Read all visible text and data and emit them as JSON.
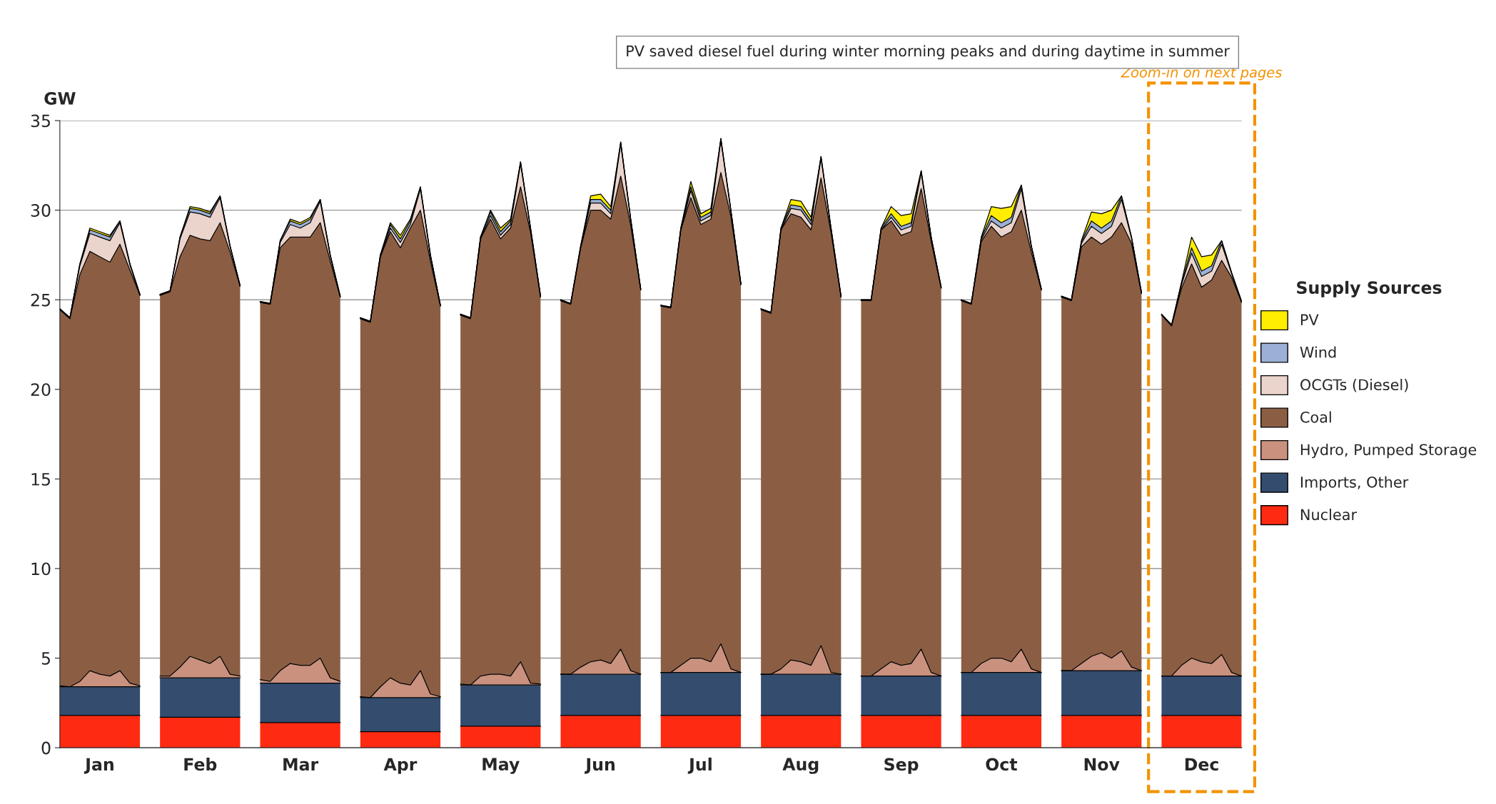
{
  "chart_data": {
    "type": "area",
    "stacked": true,
    "ylabel": "GW",
    "legend_title": "Supply Sources",
    "legend": "right",
    "grid": "y",
    "categories": [
      null,
      null,
      null,
      null,
      "Jan",
      null,
      null,
      null,
      null,
      null,
      null,
      null,
      null,
      null,
      "Feb",
      null,
      null,
      null,
      null,
      null,
      null,
      null,
      null,
      null,
      "Mar",
      null,
      null,
      null,
      null,
      null,
      null,
      null,
      null,
      null,
      "Apr",
      null,
      null,
      null,
      null,
      null,
      null,
      null,
      null,
      null,
      "May",
      null,
      null,
      null,
      null,
      null,
      null,
      null,
      null,
      null,
      "Jun",
      null,
      null,
      null,
      null,
      null,
      null,
      null,
      null,
      null,
      "Jul",
      null,
      null,
      null,
      null,
      null,
      null,
      null,
      null,
      null,
      "Aug",
      null,
      null,
      null,
      null,
      null,
      null,
      null,
      null,
      null,
      "Sep",
      null,
      null,
      null,
      null,
      null,
      null,
      null,
      null,
      null,
      "Oct",
      null,
      null,
      null,
      null,
      null,
      null,
      null,
      null,
      null,
      "Nov",
      null,
      null,
      null,
      null,
      null,
      null,
      null,
      null,
      null,
      "Dec",
      null,
      null,
      null,
      null
    ],
    "ylim": [
      0,
      35
    ],
    "yticks": [
      0,
      5,
      10,
      15,
      20,
      25,
      30,
      35
    ],
    "series": [
      {
        "name": "Nuclear",
        "color": "#ff2a12",
        "values": [
          1.8,
          1.8,
          1.8,
          1.8,
          1.8,
          1.8,
          1.8,
          1.8,
          1.8,
          null,
          1.7,
          1.7,
          1.7,
          1.7,
          1.7,
          1.7,
          1.7,
          1.7,
          1.7,
          null,
          1.4,
          1.4,
          1.4,
          1.4,
          1.4,
          1.4,
          1.4,
          1.4,
          1.4,
          null,
          0.9,
          0.9,
          0.9,
          0.9,
          0.9,
          0.9,
          0.9,
          0.9,
          0.9,
          null,
          1.2,
          1.2,
          1.2,
          1.2,
          1.2,
          1.2,
          1.2,
          1.2,
          1.2,
          null,
          1.8,
          1.8,
          1.8,
          1.8,
          1.8,
          1.8,
          1.8,
          1.8,
          1.8,
          null,
          1.8,
          1.8,
          1.8,
          1.8,
          1.8,
          1.8,
          1.8,
          1.8,
          1.8,
          null,
          1.8,
          1.8,
          1.8,
          1.8,
          1.8,
          1.8,
          1.8,
          1.8,
          1.8,
          null,
          1.8,
          1.8,
          1.8,
          1.8,
          1.8,
          1.8,
          1.8,
          1.8,
          1.8,
          null,
          1.8,
          1.8,
          1.8,
          1.8,
          1.8,
          1.8,
          1.8,
          1.8,
          1.8,
          null,
          1.8,
          1.8,
          1.8,
          1.8,
          1.8,
          1.8,
          1.8,
          1.8,
          1.8,
          null,
          1.8,
          1.8,
          1.8,
          1.8,
          1.8,
          1.8,
          1.8,
          1.8,
          1.8
        ]
      },
      {
        "name": "Imports, Other",
        "color": "#344c6e",
        "values": [
          1.6,
          1.6,
          1.6,
          1.6,
          1.6,
          1.6,
          1.6,
          1.6,
          1.6,
          null,
          2.2,
          2.2,
          2.2,
          2.2,
          2.2,
          2.2,
          2.2,
          2.2,
          2.2,
          null,
          2.2,
          2.2,
          2.2,
          2.2,
          2.2,
          2.2,
          2.2,
          2.2,
          2.2,
          null,
          1.9,
          1.9,
          1.9,
          1.9,
          1.9,
          1.9,
          1.9,
          1.9,
          1.9,
          null,
          2.3,
          2.3,
          2.3,
          2.3,
          2.3,
          2.3,
          2.3,
          2.3,
          2.3,
          null,
          2.3,
          2.3,
          2.3,
          2.3,
          2.3,
          2.3,
          2.3,
          2.3,
          2.3,
          null,
          2.4,
          2.4,
          2.4,
          2.4,
          2.4,
          2.4,
          2.4,
          2.4,
          2.4,
          null,
          2.3,
          2.3,
          2.3,
          2.3,
          2.3,
          2.3,
          2.3,
          2.3,
          2.3,
          null,
          2.2,
          2.2,
          2.2,
          2.2,
          2.2,
          2.2,
          2.2,
          2.2,
          2.2,
          null,
          2.4,
          2.4,
          2.4,
          2.4,
          2.4,
          2.4,
          2.4,
          2.4,
          2.4,
          null,
          2.5,
          2.5,
          2.5,
          2.5,
          2.5,
          2.5,
          2.5,
          2.5,
          2.5,
          null,
          2.2,
          2.2,
          2.2,
          2.2,
          2.2,
          2.2,
          2.2,
          2.2,
          2.2
        ]
      },
      {
        "name": "Hydro, Pumped Storage",
        "color": "#c9917e",
        "values": [
          0.05,
          0,
          0.3,
          0.9,
          0.7,
          0.6,
          0.9,
          0.2,
          0.05,
          null,
          0.1,
          0.1,
          0.6,
          1.2,
          1.0,
          0.8,
          1.2,
          0.2,
          0.1,
          null,
          0.2,
          0.1,
          0.7,
          1.1,
          1.0,
          1.0,
          1.4,
          0.3,
          0.1,
          null,
          0.05,
          0,
          0.6,
          1.1,
          0.8,
          0.7,
          1.5,
          0.2,
          0.05,
          null,
          0.05,
          0,
          0.5,
          0.6,
          0.6,
          0.5,
          1.3,
          0.1,
          0.05,
          null,
          0,
          0,
          0.4,
          0.7,
          0.8,
          0.6,
          1.4,
          0.2,
          0,
          null,
          0,
          0,
          0.4,
          0.8,
          0.8,
          0.6,
          1.6,
          0.2,
          0,
          null,
          0,
          0,
          0.3,
          0.8,
          0.7,
          0.5,
          1.6,
          0.1,
          0,
          null,
          0,
          0,
          0.4,
          0.8,
          0.6,
          0.7,
          1.5,
          0.2,
          0,
          null,
          0,
          0,
          0.5,
          0.8,
          0.8,
          0.6,
          1.3,
          0.2,
          0,
          null,
          0,
          0,
          0.4,
          0.8,
          1.0,
          0.7,
          1.1,
          0.2,
          0,
          null,
          0,
          0,
          0.6,
          1.0,
          0.8,
          0.7,
          1.2,
          0.2,
          0
        ]
      },
      {
        "name": "Coal",
        "color": "#8b5e44",
        "values": [
          21.0,
          20.55,
          22.7,
          23.4,
          23.3,
          23.1,
          23.8,
          23.05,
          21.8,
          null,
          21.25,
          21.45,
          22.9,
          23.5,
          23.5,
          23.6,
          24.2,
          23.55,
          21.75,
          null,
          21.05,
          21.05,
          23.6,
          23.8,
          23.9,
          23.9,
          24.3,
          23.25,
          21.45,
          null,
          21.1,
          20.95,
          24.0,
          24.9,
          24.3,
          25.5,
          25.7,
          24.15,
          21.8,
          null,
          20.6,
          20.45,
          24.4,
          25.4,
          24.3,
          25.0,
          26.5,
          25.15,
          21.6,
          null,
          20.85,
          20.65,
          23.4,
          25.2,
          25.1,
          24.8,
          26.4,
          24.85,
          21.45,
          null,
          20.45,
          20.35,
          24.3,
          25.7,
          24.2,
          24.7,
          26.3,
          25.25,
          21.65,
          null,
          20.35,
          20.15,
          24.5,
          24.9,
          24.8,
          24.3,
          26.1,
          24.55,
          21.05,
          null,
          20.95,
          20.95,
          24.5,
          24.6,
          24.0,
          24.1,
          25.7,
          24.05,
          21.65,
          null,
          20.75,
          20.55,
          23.55,
          24.1,
          23.5,
          24.0,
          24.5,
          23.25,
          21.35,
          null,
          20.85,
          20.65,
          23.25,
          23.4,
          22.8,
          23.5,
          23.9,
          23.65,
          21.05,
          null,
          20.15,
          19.55,
          21.05,
          22.0,
          20.9,
          21.4,
          22.0,
          22.05,
          20.85
        ]
      },
      {
        "name": "OCGTs (Diesel)",
        "color": "#ead4cc",
        "values": [
          0,
          0,
          0.5,
          1.0,
          1.1,
          1.2,
          1.2,
          0.3,
          0,
          null,
          0,
          0,
          1.0,
          1.3,
          1.4,
          1.3,
          1.4,
          0.3,
          0,
          null,
          0,
          0,
          0.3,
          0.7,
          0.5,
          0.8,
          1.2,
          0.3,
          0,
          null,
          0,
          0,
          0,
          0.2,
          0.3,
          0.2,
          1.2,
          0.3,
          0,
          null,
          0,
          0,
          0,
          0.2,
          0.2,
          0.2,
          1.3,
          0.2,
          0,
          null,
          0,
          0,
          0,
          0.4,
          0.4,
          0.3,
          1.8,
          0.3,
          0,
          null,
          0,
          0,
          0,
          0.4,
          0.2,
          0.2,
          1.8,
          0.3,
          0,
          null,
          0,
          0,
          0,
          0.3,
          0.4,
          0.3,
          1.1,
          0.2,
          0,
          null,
          0,
          0,
          0,
          0.2,
          0.3,
          0.3,
          0.9,
          0.2,
          0,
          null,
          0,
          0,
          0.1,
          0.3,
          0.5,
          0.5,
          1.2,
          0.3,
          0,
          null,
          0,
          0,
          0.2,
          0.6,
          0.6,
          0.6,
          1.3,
          0.3,
          0,
          null,
          0,
          0,
          0.2,
          0.6,
          0.6,
          0.5,
          0.9,
          0.2,
          0
        ]
      },
      {
        "name": "Wind",
        "color": "#9bb0d4",
        "values": [
          0.05,
          0.05,
          0.1,
          0.2,
          0.2,
          0.2,
          0.1,
          0.05,
          0.05,
          null,
          0.05,
          0.05,
          0.1,
          0.2,
          0.2,
          0.2,
          0.1,
          0.05,
          0.05,
          null,
          0.05,
          0.05,
          0.1,
          0.2,
          0.2,
          0.2,
          0.1,
          0.05,
          0.05,
          null,
          0.05,
          0.05,
          0.1,
          0.2,
          0.2,
          0.2,
          0.1,
          0.05,
          0.05,
          null,
          0.05,
          0.05,
          0.1,
          0.2,
          0.2,
          0.2,
          0.1,
          0.05,
          0.05,
          null,
          0.05,
          0.05,
          0.1,
          0.2,
          0.2,
          0.2,
          0.1,
          0.05,
          0.05,
          null,
          0.05,
          0.05,
          0.1,
          0.2,
          0.2,
          0.2,
          0.1,
          0.05,
          0.05,
          null,
          0.05,
          0.05,
          0.1,
          0.2,
          0.2,
          0.2,
          0.1,
          0.05,
          0.05,
          null,
          0.05,
          0.05,
          0.1,
          0.2,
          0.2,
          0.2,
          0.1,
          0.05,
          0.05,
          null,
          0.05,
          0.05,
          0.1,
          0.3,
          0.3,
          0.3,
          0.2,
          0.05,
          0.05,
          null,
          0.05,
          0.05,
          0.1,
          0.3,
          0.3,
          0.3,
          0.2,
          0.05,
          0.05,
          null,
          0.05,
          0.05,
          0.1,
          0.3,
          0.3,
          0.3,
          0.2,
          0.05,
          0.05
        ]
      },
      {
        "name": "PV",
        "color": "#ffee00",
        "values": [
          0,
          0,
          0,
          0.1,
          0.1,
          0.1,
          0,
          0,
          0,
          null,
          0,
          0,
          0,
          0.1,
          0.1,
          0.1,
          0,
          0,
          0,
          null,
          0,
          0,
          0,
          0.1,
          0.1,
          0.1,
          0,
          0,
          0,
          null,
          0,
          0,
          0,
          0.1,
          0.2,
          0.1,
          0,
          0,
          0,
          null,
          0,
          0,
          0,
          0.1,
          0.2,
          0.1,
          0,
          0,
          0,
          null,
          0,
          0,
          0,
          0.2,
          0.3,
          0.2,
          0,
          0,
          0,
          null,
          0,
          0,
          0,
          0.3,
          0.2,
          0.2,
          0,
          0,
          0,
          null,
          0,
          0,
          0,
          0.3,
          0.3,
          0.2,
          0,
          0,
          0,
          null,
          0,
          0,
          0,
          0.4,
          0.6,
          0.5,
          0,
          0,
          0,
          null,
          0,
          0,
          0.05,
          0.5,
          0.8,
          0.6,
          0,
          0,
          0,
          null,
          0,
          0,
          0.05,
          0.5,
          0.8,
          0.6,
          0,
          0,
          0,
          null,
          0,
          0,
          0.05,
          0.6,
          0.8,
          0.6,
          0,
          0,
          0
        ]
      }
    ],
    "annotations": [
      "PV saved diesel fuel during winter morning peaks and during daytime in summer",
      "Zoom-in on next pages"
    ]
  }
}
